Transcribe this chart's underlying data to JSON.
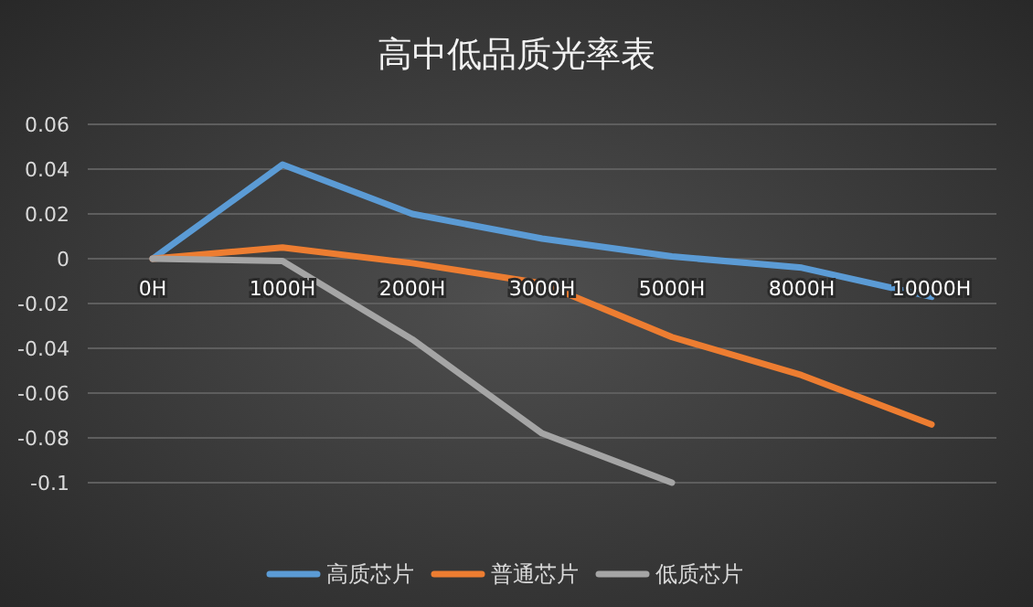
{
  "chart_data": {
    "type": "line",
    "title": "高中低品质光率表",
    "categories": [
      "0H",
      "1000H",
      "2000H",
      "3000H",
      "5000H",
      "8000H",
      "10000H"
    ],
    "series": [
      {
        "name": "高质芯片",
        "color": "#5b9bd5",
        "values": [
          0,
          0.042,
          0.02,
          0.009,
          0.001,
          -0.004,
          -0.017
        ]
      },
      {
        "name": "普通芯片",
        "color": "#ed7d31",
        "values": [
          0,
          0.005,
          -0.002,
          -0.011,
          -0.035,
          -0.052,
          -0.074
        ]
      },
      {
        "name": "低质芯片",
        "color": "#a5a5a5",
        "values": [
          0,
          -0.001,
          -0.036,
          -0.078,
          -0.1,
          null,
          null
        ]
      }
    ],
    "ylim": [
      -0.1,
      0.06
    ],
    "yticks": [
      -0.1,
      -0.08,
      -0.06,
      -0.04,
      -0.02,
      0,
      0.02,
      0.04,
      0.06
    ],
    "grid": "y",
    "legend": "bottom",
    "marker": "none",
    "line_style": "solid"
  }
}
